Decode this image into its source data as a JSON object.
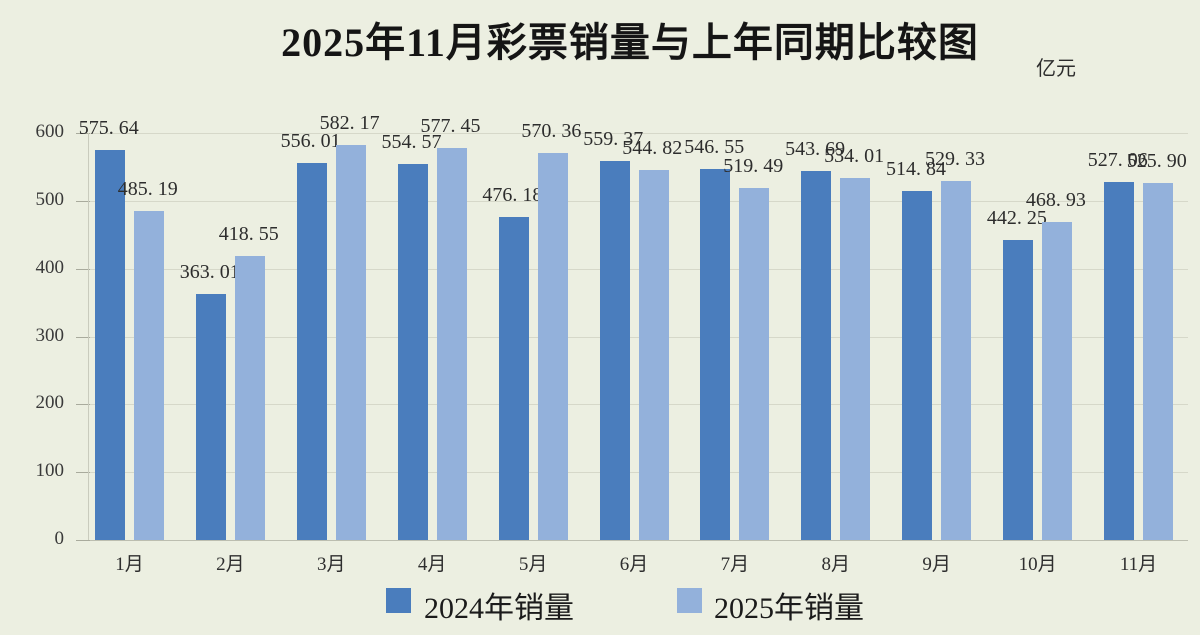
{
  "title": "2025年11月彩票销量与上年同期比较图",
  "unit_label": "亿元",
  "colors": {
    "series_2024": "#4a7dbd",
    "series_2025": "#93b1db",
    "background": "#ecefe1"
  },
  "chart_data": {
    "type": "bar",
    "title": "2025年11月彩票销量与上年同期比较图",
    "ylabel": "亿元",
    "xlabel": "",
    "categories": [
      "1月",
      "2月",
      "3月",
      "4月",
      "5月",
      "6月",
      "7月",
      "8月",
      "9月",
      "10月",
      "11月"
    ],
    "series": [
      {
        "name": "2024年销量",
        "color": "#4a7dbd",
        "values": [
          "575.64",
          "363.01",
          "556.01",
          "554.57",
          "476.18",
          "559.37",
          "546.55",
          "543.69",
          "514.84",
          "442.25",
          "527.06"
        ]
      },
      {
        "name": "2025年销量",
        "color": "#93b1db",
        "values": [
          "485.19",
          "418.55",
          "582.17",
          "577.45",
          "570.36",
          "544.82",
          "519.49",
          "534.01",
          "529.33",
          "468.93",
          "525.90"
        ]
      }
    ],
    "ylim": [
      0,
      600
    ],
    "yticks": [
      0,
      100,
      200,
      300,
      400,
      500,
      600
    ],
    "grid": true,
    "legend_position": "bottom"
  }
}
